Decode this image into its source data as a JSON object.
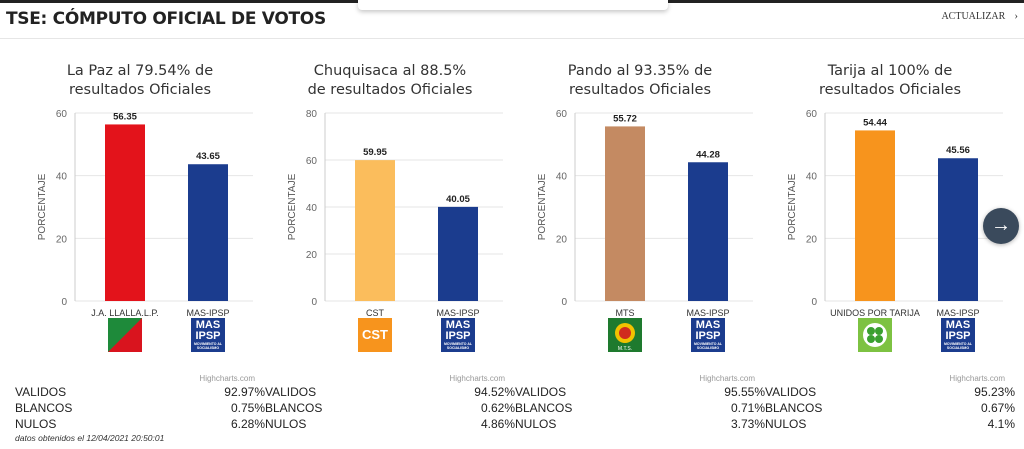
{
  "header": {
    "title": "TSE: CÓMPUTO OFICIAL DE VOTOS",
    "update_label": "ACTUALIZAR",
    "update_icon": "chevron-right-icon"
  },
  "credits_label": "Highcharts.com",
  "y_axis_label": "PORCENTAJE",
  "footnote": "datos obtenidos el 12/04/2021 20:50:01",
  "nav_next_icon": "arrow-right-icon",
  "chart_data": [
    {
      "type": "bar",
      "title": "La Paz al 79.54% de resultados Oficiales",
      "title_lines": [
        "La Paz al 79.54% de",
        "resultados Oficiales"
      ],
      "ylabel": "PORCENTAJE",
      "ylim": [
        0,
        60
      ],
      "yticks": [
        0,
        20,
        40,
        60
      ],
      "categories": [
        "J.A. LLALLA.L.P.",
        "MAS-IPSP"
      ],
      "values": [
        56.35,
        43.65
      ],
      "value_labels": [
        "56.35",
        "43.65"
      ],
      "colors": [
        "#e3131b",
        "#1b3c8e"
      ],
      "logos": [
        "jallalla-logo",
        "mas-ipsp-logo"
      ],
      "stats": [
        {
          "label": "VALIDOS",
          "value": "92.97%"
        },
        {
          "label": "BLANCOS",
          "value": "0.75%"
        },
        {
          "label": "NULOS",
          "value": "6.28%"
        }
      ]
    },
    {
      "type": "bar",
      "title": "Chuquisaca al 88.5% de resultados Oficiales",
      "title_lines": [
        "Chuquisaca al 88.5%",
        "de resultados Oficiales"
      ],
      "ylabel": "PORCENTAJE",
      "ylim": [
        0,
        80
      ],
      "yticks": [
        0,
        20,
        40,
        60,
        80
      ],
      "categories": [
        "CST",
        "MAS-IPSP"
      ],
      "values": [
        59.95,
        40.05
      ],
      "value_labels": [
        "59.95",
        "40.05"
      ],
      "colors": [
        "#fbbd5c",
        "#1b3c8e"
      ],
      "logos": [
        "cst-logo",
        "mas-ipsp-logo"
      ],
      "cst_text": "CST",
      "stats": [
        {
          "label": "VALIDOS",
          "value": "94.52%"
        },
        {
          "label": "BLANCOS",
          "value": "0.62%"
        },
        {
          "label": "NULOS",
          "value": "4.86%"
        }
      ]
    },
    {
      "type": "bar",
      "title": "Pando al 93.35% de resultados Oficiales",
      "title_lines": [
        "Pando al 93.35% de",
        "resultados Oficiales"
      ],
      "ylabel": "PORCENTAJE",
      "ylim": [
        0,
        60
      ],
      "yticks": [
        0,
        20,
        40,
        60
      ],
      "categories": [
        "MTS",
        "MAS-IPSP"
      ],
      "values": [
        55.72,
        44.28
      ],
      "value_labels": [
        "55.72",
        "44.28"
      ],
      "colors": [
        "#c48a62",
        "#1b3c8e"
      ],
      "logos": [
        "mts-logo",
        "mas-ipsp-logo"
      ],
      "stats": [
        {
          "label": "VALIDOS",
          "value": "95.55%"
        },
        {
          "label": "BLANCOS",
          "value": "0.71%"
        },
        {
          "label": "NULOS",
          "value": "3.73%"
        }
      ]
    },
    {
      "type": "bar",
      "title": "Tarija al 100% de resultados Oficiales",
      "title_lines": [
        "Tarija al 100% de",
        "resultados Oficiales"
      ],
      "ylabel": "PORCENTAJE",
      "ylim": [
        0,
        60
      ],
      "yticks": [
        0,
        20,
        40,
        60
      ],
      "categories": [
        "UNIDOS POR TARIJA",
        "MAS-IPSP"
      ],
      "values": [
        54.44,
        45.56
      ],
      "value_labels": [
        "54.44",
        "45.56"
      ],
      "colors": [
        "#f7941d",
        "#1b3c8e"
      ],
      "logos": [
        "unidos-logo",
        "mas-ipsp-logo"
      ],
      "stats": [
        {
          "label": "VALIDOS",
          "value": "95.23%"
        },
        {
          "label": "BLANCOS",
          "value": "0.67%"
        },
        {
          "label": "NULOS",
          "value": "4.1%"
        }
      ]
    }
  ],
  "mas_logo": {
    "line1": "MAS",
    "line2": "IPSP",
    "line3": "MOVIMIENTO AL SOCIALISMO"
  },
  "mts_logo": {
    "text": "M.T.S."
  }
}
